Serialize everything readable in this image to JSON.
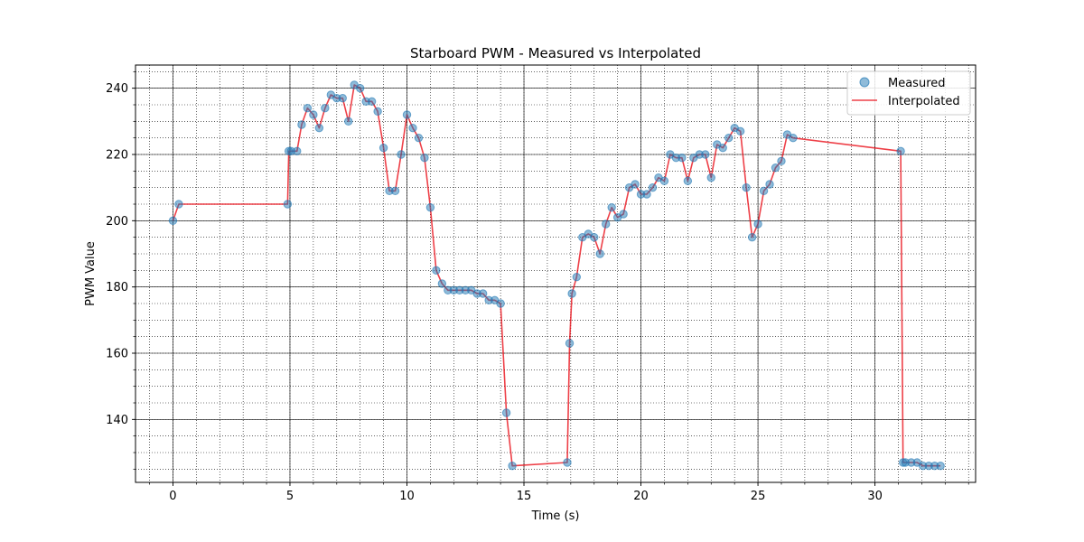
{
  "chart_data": {
    "type": "scatter",
    "title": "Starboard PWM - Measured vs Interpolated",
    "xlabel": "Time (s)",
    "ylabel": "PWM Value",
    "xlim": [
      -1.6,
      34.3
    ],
    "ylim": [
      121,
      247
    ],
    "x_ticks": [
      0,
      5,
      10,
      15,
      20,
      25,
      30
    ],
    "y_ticks": [
      140,
      160,
      180,
      200,
      220,
      240
    ],
    "x_minor_step": 1,
    "y_minor_step": 5,
    "grid": "major solid, minor dotted",
    "legend_position": "top-right",
    "colors": {
      "measured": "#1f77b4",
      "interpolated": "#e8000b"
    },
    "series": [
      {
        "name": "Measured",
        "style": "markers",
        "points": [
          [
            0,
            200
          ],
          [
            0.25,
            205
          ],
          [
            4.9,
            205
          ],
          [
            4.95,
            221
          ],
          [
            5.05,
            221
          ],
          [
            5.3,
            221
          ],
          [
            5.5,
            229
          ],
          [
            5.75,
            234
          ],
          [
            6.0,
            232
          ],
          [
            6.25,
            228
          ],
          [
            6.5,
            234
          ],
          [
            6.75,
            238
          ],
          [
            7.0,
            237
          ],
          [
            7.25,
            237
          ],
          [
            7.5,
            230
          ],
          [
            7.75,
            241
          ],
          [
            8.0,
            240
          ],
          [
            8.25,
            236
          ],
          [
            8.5,
            236
          ],
          [
            8.75,
            233
          ],
          [
            9.0,
            222
          ],
          [
            9.25,
            209
          ],
          [
            9.5,
            209
          ],
          [
            9.75,
            220
          ],
          [
            10.0,
            232
          ],
          [
            10.25,
            228
          ],
          [
            10.5,
            225
          ],
          [
            10.75,
            219
          ],
          [
            11.0,
            204
          ],
          [
            11.25,
            185
          ],
          [
            11.5,
            181
          ],
          [
            11.75,
            179
          ],
          [
            12.0,
            179
          ],
          [
            12.25,
            179
          ],
          [
            12.5,
            179
          ],
          [
            12.75,
            179
          ],
          [
            13.0,
            178
          ],
          [
            13.25,
            178
          ],
          [
            13.5,
            176
          ],
          [
            13.75,
            176
          ],
          [
            14.0,
            175
          ],
          [
            14.25,
            142
          ],
          [
            14.5,
            126
          ],
          [
            16.85,
            127
          ],
          [
            16.95,
            163
          ],
          [
            17.05,
            178
          ],
          [
            17.25,
            183
          ],
          [
            17.5,
            195
          ],
          [
            17.75,
            196
          ],
          [
            18.0,
            195
          ],
          [
            18.25,
            190
          ],
          [
            18.5,
            199
          ],
          [
            18.75,
            204
          ],
          [
            19.0,
            201
          ],
          [
            19.25,
            202
          ],
          [
            19.5,
            210
          ],
          [
            19.75,
            211
          ],
          [
            20.0,
            208
          ],
          [
            20.25,
            208
          ],
          [
            20.5,
            210
          ],
          [
            20.75,
            213
          ],
          [
            21.0,
            212
          ],
          [
            21.25,
            220
          ],
          [
            21.5,
            219
          ],
          [
            21.75,
            219
          ],
          [
            22.0,
            212
          ],
          [
            22.25,
            219
          ],
          [
            22.5,
            220
          ],
          [
            22.75,
            220
          ],
          [
            23.0,
            213
          ],
          [
            23.25,
            223
          ],
          [
            23.5,
            222
          ],
          [
            23.75,
            225
          ],
          [
            24.0,
            228
          ],
          [
            24.25,
            227
          ],
          [
            24.5,
            210
          ],
          [
            24.75,
            195
          ],
          [
            25.0,
            199
          ],
          [
            25.25,
            209
          ],
          [
            25.5,
            211
          ],
          [
            25.75,
            216
          ],
          [
            26.0,
            218
          ],
          [
            26.25,
            226
          ],
          [
            26.5,
            225
          ],
          [
            31.1,
            221
          ],
          [
            31.2,
            127
          ],
          [
            31.3,
            127
          ],
          [
            31.55,
            127
          ],
          [
            31.8,
            127
          ],
          [
            32.05,
            126
          ],
          [
            32.3,
            126
          ],
          [
            32.55,
            126
          ],
          [
            32.8,
            126
          ]
        ]
      },
      {
        "name": "Interpolated",
        "style": "line",
        "points": [
          [
            0,
            200
          ],
          [
            0.25,
            205
          ],
          [
            4.9,
            205
          ],
          [
            4.95,
            221
          ],
          [
            5.05,
            221
          ],
          [
            5.3,
            221
          ],
          [
            5.5,
            229
          ],
          [
            5.75,
            234
          ],
          [
            6.0,
            232
          ],
          [
            6.25,
            228
          ],
          [
            6.5,
            234
          ],
          [
            6.75,
            238
          ],
          [
            7.0,
            237
          ],
          [
            7.25,
            237
          ],
          [
            7.5,
            230
          ],
          [
            7.75,
            241
          ],
          [
            8.0,
            240
          ],
          [
            8.25,
            236
          ],
          [
            8.5,
            236
          ],
          [
            8.75,
            233
          ],
          [
            9.0,
            222
          ],
          [
            9.25,
            209
          ],
          [
            9.5,
            209
          ],
          [
            9.75,
            220
          ],
          [
            10.0,
            232
          ],
          [
            10.25,
            228
          ],
          [
            10.5,
            225
          ],
          [
            10.75,
            219
          ],
          [
            11.0,
            204
          ],
          [
            11.25,
            185
          ],
          [
            11.5,
            181
          ],
          [
            11.75,
            179
          ],
          [
            12.0,
            179
          ],
          [
            12.25,
            179
          ],
          [
            12.5,
            179
          ],
          [
            12.75,
            179
          ],
          [
            13.0,
            178
          ],
          [
            13.25,
            178
          ],
          [
            13.5,
            176
          ],
          [
            13.75,
            176
          ],
          [
            14.0,
            175
          ],
          [
            14.25,
            142
          ],
          [
            14.5,
            126
          ],
          [
            16.85,
            127
          ],
          [
            16.95,
            163
          ],
          [
            17.05,
            178
          ],
          [
            17.25,
            183
          ],
          [
            17.5,
            195
          ],
          [
            17.75,
            196
          ],
          [
            18.0,
            195
          ],
          [
            18.25,
            190
          ],
          [
            18.5,
            199
          ],
          [
            18.75,
            204
          ],
          [
            19.0,
            201
          ],
          [
            19.25,
            202
          ],
          [
            19.5,
            210
          ],
          [
            19.75,
            211
          ],
          [
            20.0,
            208
          ],
          [
            20.25,
            208
          ],
          [
            20.5,
            210
          ],
          [
            20.75,
            213
          ],
          [
            21.0,
            212
          ],
          [
            21.25,
            220
          ],
          [
            21.5,
            219
          ],
          [
            21.75,
            219
          ],
          [
            22.0,
            212
          ],
          [
            22.25,
            219
          ],
          [
            22.5,
            220
          ],
          [
            22.75,
            220
          ],
          [
            23.0,
            213
          ],
          [
            23.25,
            223
          ],
          [
            23.5,
            222
          ],
          [
            23.75,
            225
          ],
          [
            24.0,
            228
          ],
          [
            24.25,
            227
          ],
          [
            24.5,
            210
          ],
          [
            24.75,
            195
          ],
          [
            25.0,
            199
          ],
          [
            25.25,
            209
          ],
          [
            25.5,
            211
          ],
          [
            25.75,
            216
          ],
          [
            26.0,
            218
          ],
          [
            26.25,
            226
          ],
          [
            26.5,
            225
          ],
          [
            31.1,
            221
          ],
          [
            31.2,
            127
          ],
          [
            31.3,
            127
          ],
          [
            31.55,
            127
          ],
          [
            31.8,
            127
          ],
          [
            32.05,
            126
          ],
          [
            32.3,
            126
          ],
          [
            32.55,
            126
          ],
          [
            32.8,
            126
          ]
        ]
      }
    ]
  }
}
